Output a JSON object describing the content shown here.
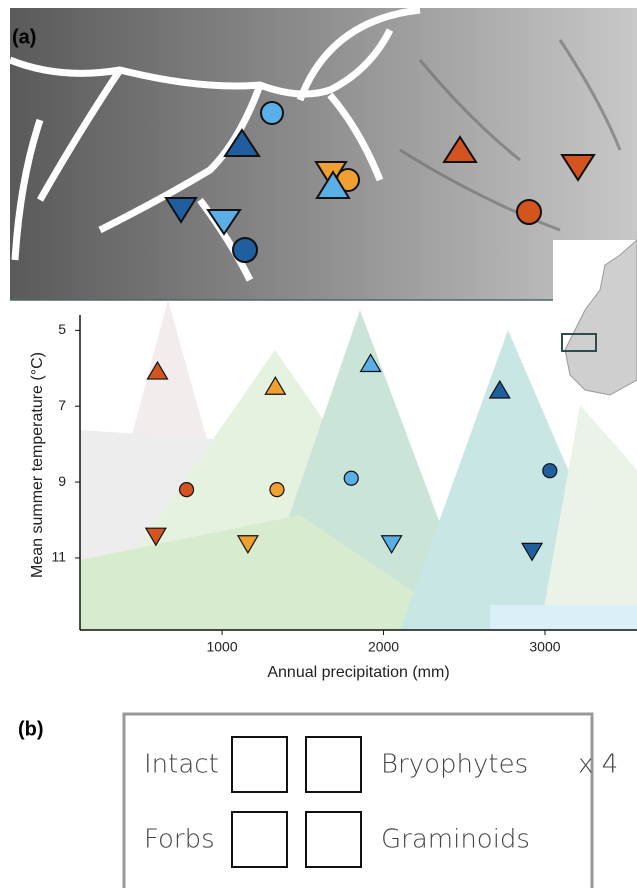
{
  "panel_labels": [
    "(a)",
    "(b)"
  ],
  "chart_data": {
    "type": "scatter",
    "xlabel": "Annual precipitation (mm)",
    "ylabel": "Mean summer temperature (°C)",
    "xlim": [
      120,
      3570
    ],
    "xticks": [
      1000,
      2000,
      3000
    ],
    "ylim": [
      4.2,
      12.9
    ],
    "yticks": [
      5,
      7,
      9,
      11
    ],
    "y_inverted": true,
    "series": [
      {
        "color": "#d4541f",
        "markers": [
          "triangle-up",
          "circle",
          "triangle-down"
        ],
        "x": [
          600,
          780,
          590
        ],
        "y": [
          6.1,
          9.2,
          10.4
        ]
      },
      {
        "color": "#f0a030",
        "markers": [
          "triangle-up",
          "circle",
          "triangle-down"
        ],
        "x": [
          1330,
          1340,
          1160
        ],
        "y": [
          6.5,
          9.2,
          10.6
        ]
      },
      {
        "color": "#5aafe6",
        "markers": [
          "triangle-up",
          "circle",
          "triangle-down"
        ],
        "x": [
          1920,
          1800,
          2050
        ],
        "y": [
          5.9,
          8.9,
          10.6
        ]
      },
      {
        "color": "#1f5fa0",
        "markers": [
          "triangle-up",
          "circle",
          "triangle-down"
        ],
        "x": [
          2720,
          3030,
          2920
        ],
        "y": [
          6.6,
          8.7,
          10.8
        ]
      }
    ]
  },
  "panel_b": {
    "cells": [
      "Intact",
      "Bryophytes",
      "Forbs",
      "Graminoids"
    ],
    "multiplier": "x 4"
  }
}
